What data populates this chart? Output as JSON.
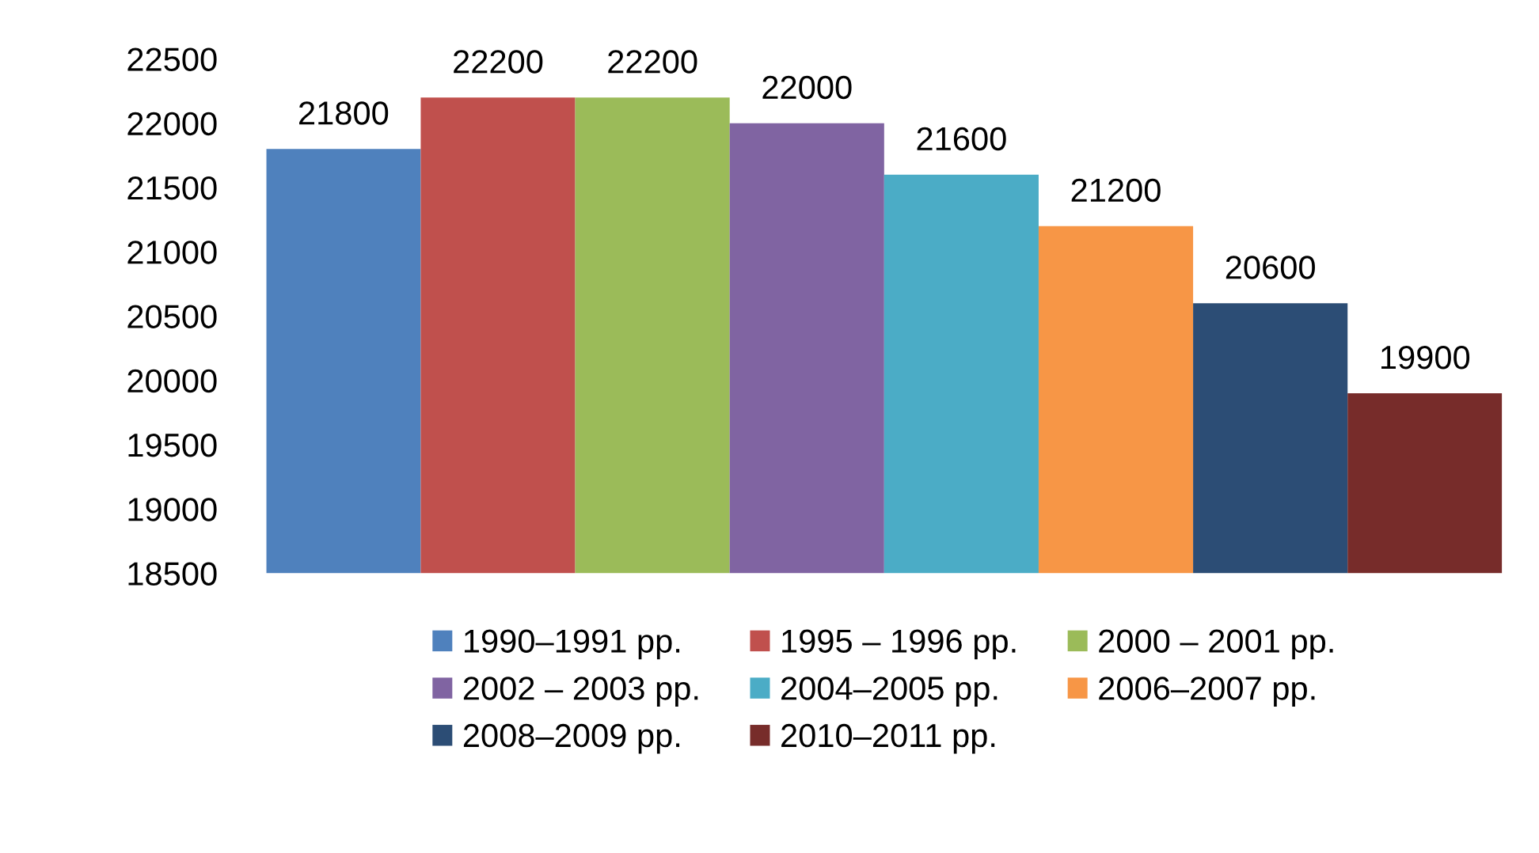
{
  "chart_data": {
    "type": "bar",
    "categories": [
      null
    ],
    "series": [
      {
        "name": "1990–1991 pp.",
        "color": "#4f81bd",
        "values": [
          21800
        ]
      },
      {
        "name": "1995 – 1996 pp.",
        "color": "#c0504d",
        "values": [
          22200
        ]
      },
      {
        "name": "2000 – 2001 pp.",
        "color": "#9bbb59",
        "values": [
          22200
        ]
      },
      {
        "name": "2002 – 2003 pp.",
        "color": "#8064a2",
        "values": [
          22000
        ]
      },
      {
        "name": "2004–2005 pp.",
        "color": "#4bacc6",
        "values": [
          21600
        ]
      },
      {
        "name": "2006–2007 pp.",
        "color": "#f79646",
        "values": [
          21200
        ]
      },
      {
        "name": "2008–2009 pp.",
        "color": "#2c4d75",
        "values": [
          20600
        ]
      },
      {
        "name": "2010–2011 pp.",
        "color": "#772c2a",
        "values": [
          19900
        ]
      }
    ],
    "ylim": [
      18500,
      22500
    ],
    "yticks": [
      18500,
      19000,
      19500,
      20000,
      20500,
      21000,
      21500,
      22000,
      22500
    ],
    "tick_labels": "y",
    "grid": false,
    "data_labels": true,
    "legend": "bottom"
  }
}
